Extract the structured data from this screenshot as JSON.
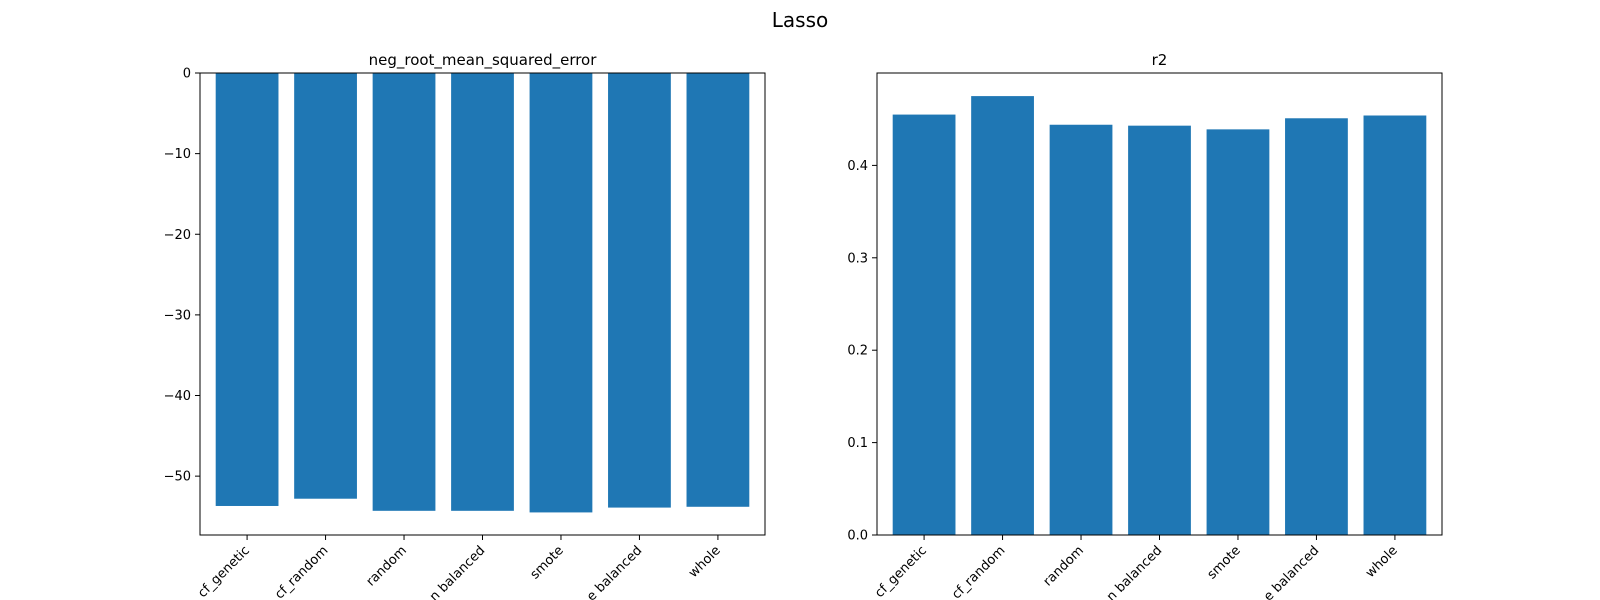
{
  "figure": {
    "title": "Lasso"
  },
  "chart_data": [
    {
      "type": "bar",
      "title": "neg_root_mean_squared_error",
      "xlabel": "",
      "ylabel": "",
      "categories": [
        "cf_genetic",
        "cf_random",
        "random",
        "random balanced",
        "smote",
        "smote balanced",
        "whole"
      ],
      "tick_labels_visible": [
        "cf_genetic",
        "cf_random",
        "random",
        "n balanced",
        "smote",
        "e balanced",
        "whole"
      ],
      "values": [
        -53.7,
        -52.8,
        -54.3,
        -54.3,
        -54.5,
        -53.9,
        -53.8
      ],
      "ylim": [
        -57.3,
        0
      ],
      "yticks": [
        0,
        -10,
        -20,
        -30,
        -40,
        -50
      ],
      "ytick_labels": [
        "0",
        "−10",
        "−20",
        "−30",
        "−40",
        "−50"
      ],
      "color": "#1f77b4",
      "grid": false
    },
    {
      "type": "bar",
      "title": "r2",
      "xlabel": "",
      "ylabel": "",
      "categories": [
        "cf_genetic",
        "cf_random",
        "random",
        "random balanced",
        "smote",
        "smote balanced",
        "whole"
      ],
      "tick_labels_visible": [
        "cf_genetic",
        "cf_random",
        "random",
        "n balanced",
        "smote",
        "e balanced",
        "whole"
      ],
      "values": [
        0.455,
        0.475,
        0.444,
        0.443,
        0.439,
        0.451,
        0.454
      ],
      "ylim": [
        0,
        0.5
      ],
      "yticks": [
        0,
        0.1,
        0.2,
        0.3,
        0.4
      ],
      "ytick_labels": [
        "0.0",
        "0.1",
        "0.2",
        "0.3",
        "0.4"
      ],
      "color": "#1f77b4",
      "grid": false
    }
  ]
}
